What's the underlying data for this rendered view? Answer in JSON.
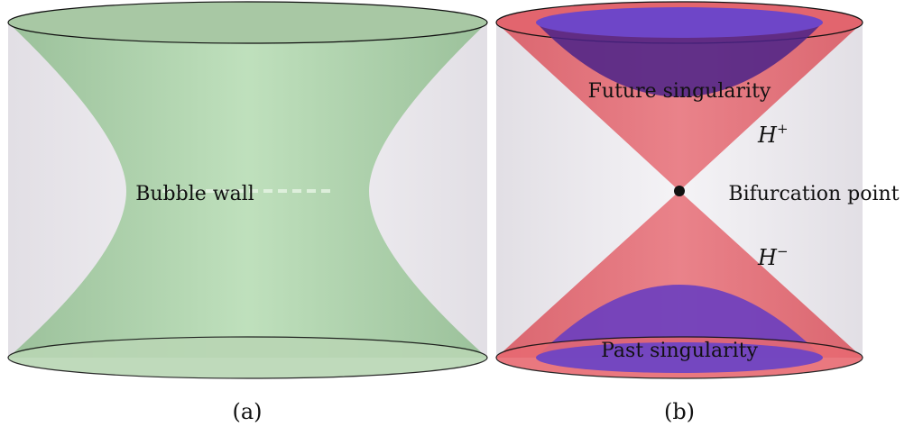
{
  "panel_a": {
    "label": "Bubble wall",
    "caption": "(a)"
  },
  "panel_b": {
    "future_label": "Future singularity",
    "past_label": "Past singularity",
    "point_label": "Bifurcation point",
    "horizon_future": {
      "symbol": "H",
      "sup": "+"
    },
    "horizon_past": {
      "symbol": "H",
      "sup": "−"
    },
    "caption": "(b)"
  },
  "colors": {
    "cylinder_fill": "#e8e4ea",
    "bubble_fill": "#a9cfa6",
    "horizon_red": "#e0606a",
    "singularity_purple": "#6a3ec0",
    "outline": "#111111"
  }
}
